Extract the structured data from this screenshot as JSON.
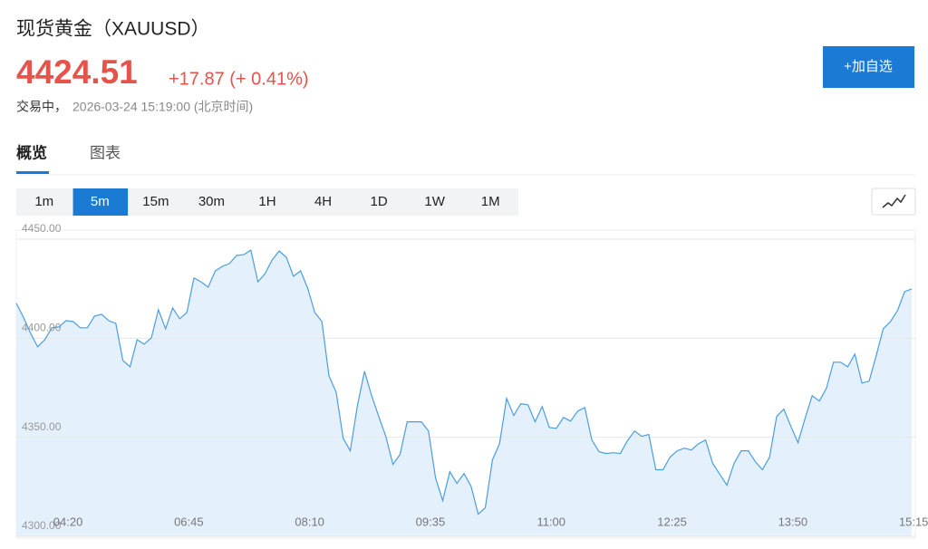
{
  "header": {
    "title": "现货黄金（XAUUSD）",
    "price": "4424.51",
    "change": "+17.87 (+ 0.41%)",
    "status": "交易中，",
    "time": "2026-03-24 15:19:00 (北京时间)",
    "button": "+加自选"
  },
  "tabs": [
    "概览",
    "图表"
  ],
  "active_tab": 0,
  "timeframes": [
    "1m",
    "5m",
    "15m",
    "30m",
    "1H",
    "4H",
    "1D",
    "1W",
    "1M"
  ],
  "selected_timeframe": 1,
  "chart_data": {
    "type": "area",
    "color": "#4a9de0",
    "fill": "#e4f1fc",
    "grid": true,
    "ylim": [
      4300,
      4454.6
    ],
    "yticks": [
      {
        "value": 4300,
        "label": "4300.00"
      },
      {
        "value": 4350,
        "label": "4350.00"
      },
      {
        "value": 4400,
        "label": "4400.00"
      },
      {
        "value": 4450,
        "label": "4450.00"
      }
    ],
    "categories": [
      null,
      null,
      null,
      null,
      null,
      null,
      "04:20",
      null,
      null,
      null,
      null,
      null,
      null,
      null,
      null,
      null,
      null,
      null,
      null,
      null,
      null,
      null,
      null,
      "06:45",
      null,
      null,
      null,
      null,
      null,
      null,
      null,
      null,
      null,
      null,
      null,
      null,
      null,
      null,
      null,
      null,
      "08:10",
      null,
      null,
      null,
      null,
      null,
      null,
      null,
      null,
      null,
      null,
      null,
      null,
      null,
      null,
      null,
      null,
      "09:35",
      null,
      null,
      null,
      null,
      null,
      null,
      null,
      null,
      null,
      null,
      null,
      null,
      null,
      null,
      null,
      null,
      "11:00",
      null,
      null,
      null,
      null,
      null,
      null,
      null,
      null,
      null,
      null,
      null,
      null,
      null,
      null,
      null,
      null,
      "12:25",
      null,
      null,
      null,
      null,
      null,
      null,
      null,
      null,
      null,
      null,
      null,
      null,
      null,
      null,
      null,
      null,
      "13:50",
      null,
      null,
      null,
      null,
      null,
      null,
      null,
      null,
      null,
      null,
      null,
      null,
      null,
      null,
      null,
      null,
      "15:15",
      null
    ],
    "values": [
      4417.6,
      4410.7,
      4402.5,
      4395.7,
      4399.3,
      4405.3,
      4405.7,
      4408.9,
      4408.4,
      4405.3,
      4405.3,
      4411.2,
      4412.1,
      4408.9,
      4407.5,
      4388.8,
      4385.6,
      4399.3,
      4397,
      4400.2,
      4414.4,
      4404.8,
      4415.3,
      4409.8,
      4413,
      4430.4,
      4428.5,
      4425.8,
      4434,
      4436.3,
      4437.7,
      4441.8,
      4442.2,
      4444.5,
      4428.5,
      4432.6,
      4439.5,
      4444.1,
      4440.9,
      4431.3,
      4434,
      4425.3,
      4413,
      4408.4,
      4381,
      4372.8,
      4349.5,
      4343.2,
      4366,
      4383.3,
      4371,
      4360.5,
      4350.5,
      4336.3,
      4341.3,
      4357.8,
      4357.8,
      4357.8,
      4353.2,
      4329.5,
      4318,
      4332.6,
      4326.7,
      4331.7,
      4325.3,
      4311.2,
      4314.4,
      4338.6,
      4346.8,
      4369.6,
      4361,
      4366.9,
      4366.4,
      4357.8,
      4365.5,
      4355,
      4354.5,
      4360,
      4358.2,
      4363.2,
      4365,
      4348.6,
      4342.7,
      4341.8,
      4342.2,
      4341.8,
      4348.2,
      4353.2,
      4350.5,
      4351.4,
      4333.6,
      4333.6,
      4340,
      4343.2,
      4344.5,
      4343.6,
      4346.8,
      4348.6,
      4336.8,
      4331.3,
      4325.8,
      4336.8,
      4343.2,
      4343.2,
      4337.7,
      4333.6,
      4340,
      4360.5,
      4364.2,
      4355.5,
      4347.3,
      4359.6,
      4371,
      4368.3,
      4374.7,
      4387.9,
      4387.9,
      4385.6,
      4392,
      4377.4,
      4378.3,
      4391.1,
      4404.8,
      4408.4,
      4413.9,
      4423.5,
      4424.9
    ]
  }
}
